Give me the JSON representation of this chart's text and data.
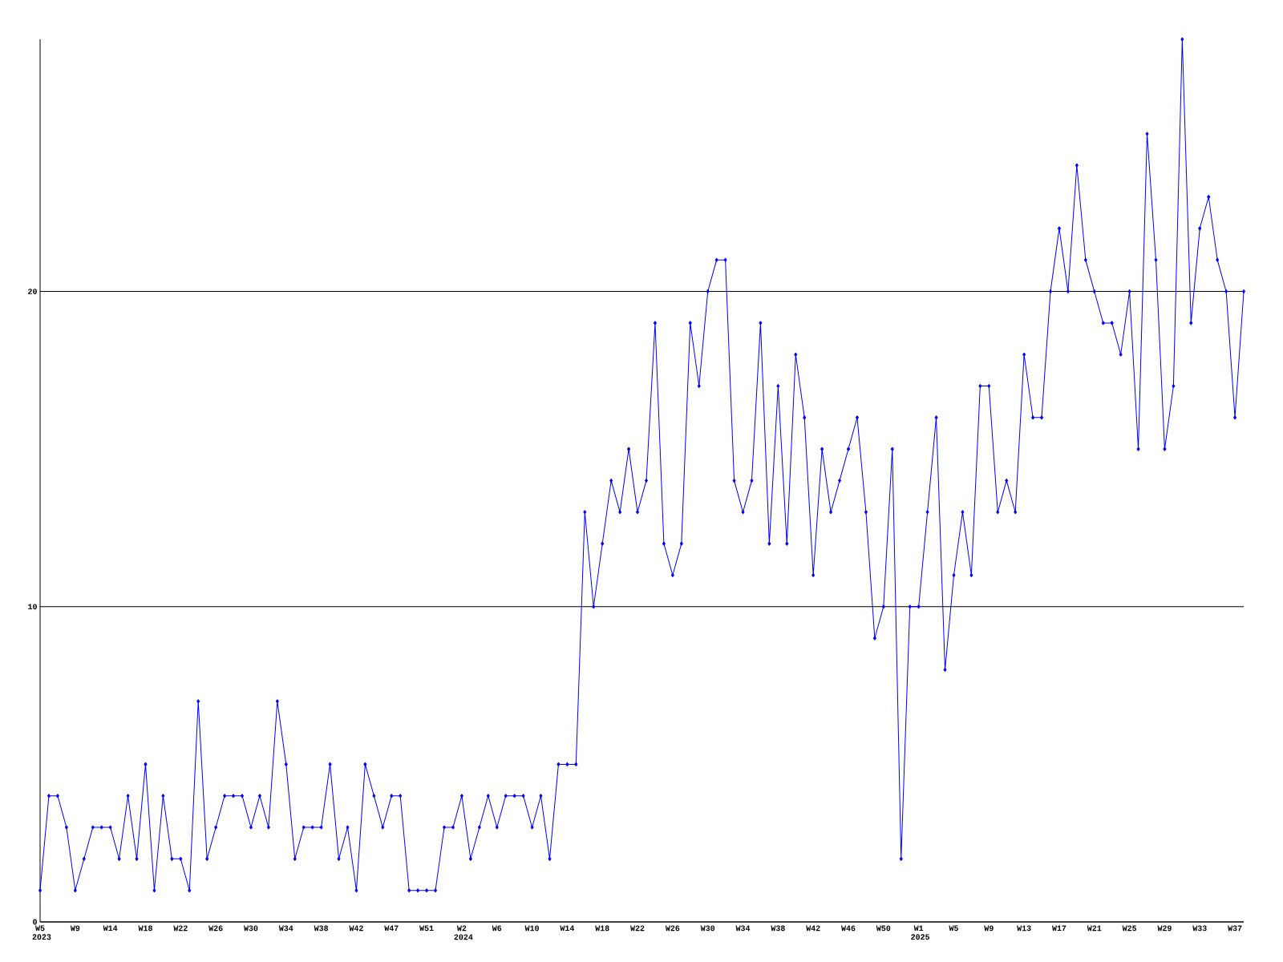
{
  "chart_data": {
    "type": "line",
    "categories": [
      "W5 2023",
      null,
      null,
      null,
      "W9",
      null,
      null,
      null,
      "W14",
      null,
      null,
      null,
      "W18",
      null,
      null,
      null,
      "W22",
      null,
      null,
      null,
      "W26",
      null,
      null,
      null,
      "W30",
      null,
      null,
      null,
      "W34",
      null,
      null,
      null,
      "W38",
      null,
      null,
      null,
      "W42",
      null,
      null,
      null,
      "W47",
      null,
      null,
      null,
      "W51",
      null,
      null,
      null,
      "W2 2024",
      null,
      null,
      null,
      "W6",
      null,
      null,
      null,
      "W10",
      null,
      null,
      null,
      "W14",
      null,
      null,
      null,
      "W18",
      null,
      null,
      null,
      "W22",
      null,
      null,
      null,
      "W26",
      null,
      null,
      null,
      "W30",
      null,
      null,
      null,
      "W34",
      null,
      null,
      null,
      "W38",
      null,
      null,
      null,
      "W42",
      null,
      null,
      null,
      "W46",
      null,
      null,
      null,
      "W50",
      null,
      null,
      null,
      "W1 2025",
      null,
      null,
      null,
      "W5",
      null,
      null,
      null,
      "W9",
      null,
      null,
      null,
      "W13",
      null,
      null,
      null,
      "W17",
      null,
      null,
      null,
      "W21",
      null,
      null,
      null,
      "W25",
      null,
      null,
      null,
      "W29",
      null,
      null,
      null,
      "W33",
      null,
      null,
      null,
      "W37",
      null
    ],
    "values": [
      1,
      4,
      4,
      3,
      1,
      2,
      3,
      3,
      3,
      2,
      4,
      2,
      5,
      1,
      4,
      2,
      2,
      1,
      7,
      2,
      3,
      4,
      4,
      4,
      3,
      4,
      3,
      7,
      5,
      2,
      3,
      3,
      3,
      5,
      2,
      3,
      1,
      5,
      4,
      3,
      4,
      4,
      1,
      1,
      1,
      1,
      3,
      3,
      4,
      2,
      3,
      4,
      3,
      4,
      4,
      4,
      3,
      4,
      2,
      5,
      5,
      5,
      13,
      10,
      12,
      14,
      13,
      15,
      13,
      14,
      19,
      12,
      11,
      12,
      19,
      17,
      20,
      21,
      21,
      14,
      13,
      14,
      19,
      12,
      17,
      12,
      18,
      16,
      11,
      15,
      13,
      14,
      15,
      16,
      13,
      9,
      10,
      15,
      2,
      10,
      10,
      13,
      16,
      8,
      11,
      13,
      11,
      17,
      17,
      13,
      14,
      13,
      18,
      16,
      16,
      20,
      22,
      20,
      24,
      21,
      20,
      19,
      19,
      18,
      20,
      15,
      25,
      21,
      15,
      17,
      28,
      19,
      22,
      23,
      21,
      20,
      16,
      20
    ],
    "color": "#0000ff",
    "marker": "diamond",
    "ylim": [
      0,
      28
    ],
    "yticks": [
      0,
      10,
      20
    ],
    "grid": "y"
  }
}
